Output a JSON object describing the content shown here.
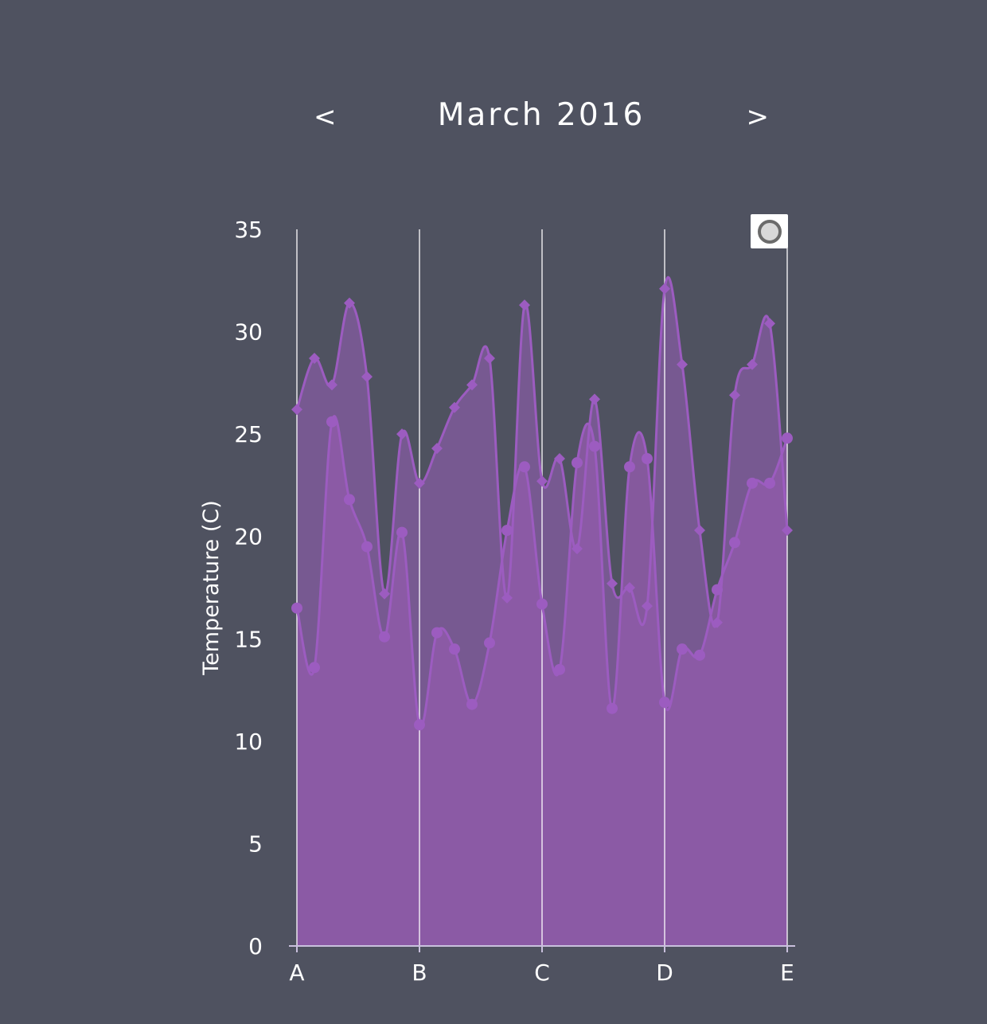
{
  "header": {
    "prev_label": "<",
    "title": "March 2016",
    "next_label": ">"
  },
  "colors": {
    "background": "#4f5260",
    "series_line": "#9c5cc0",
    "fill_high": "#7e5a9a",
    "fill_low": "#8e5aa8",
    "axis": "#ffffff"
  },
  "legend_toggle": {
    "icon": "ring-icon"
  },
  "chart_data": {
    "type": "area",
    "title": "",
    "xlabel": "",
    "ylabel": "Temperature (C)",
    "ylim": [
      0,
      35
    ],
    "yticks": [
      0,
      5,
      10,
      15,
      20,
      25,
      30,
      35
    ],
    "xlim": [
      0,
      28
    ],
    "xticks": [
      {
        "x": 0,
        "label": "A"
      },
      {
        "x": 7,
        "label": "B"
      },
      {
        "x": 14,
        "label": "C"
      },
      {
        "x": 21,
        "label": "D"
      },
      {
        "x": 28,
        "label": "E"
      }
    ],
    "vertical_grid": true,
    "x": [
      0,
      1,
      2,
      3,
      4,
      5,
      6,
      7,
      8,
      9,
      10,
      11,
      12,
      13,
      14,
      15,
      16,
      17,
      18,
      19,
      20,
      21,
      22,
      23,
      24,
      25,
      26,
      27,
      28
    ],
    "series": [
      {
        "marker": "diamond",
        "values": [
          26.2,
          28.7,
          27.4,
          31.4,
          27.8,
          17.2,
          25.0,
          22.6,
          24.3,
          26.3,
          27.4,
          28.7,
          17.0,
          31.3,
          22.7,
          23.8,
          19.4,
          26.7,
          17.7,
          17.5,
          16.6,
          32.1,
          28.4,
          20.3,
          15.8,
          26.9,
          28.4,
          30.4,
          20.3
        ]
      },
      {
        "marker": "circle",
        "values": [
          16.5,
          13.6,
          25.6,
          21.8,
          19.5,
          15.1,
          20.2,
          10.8,
          15.3,
          14.5,
          11.8,
          14.8,
          20.3,
          23.4,
          16.7,
          13.5,
          23.6,
          24.4,
          11.6,
          23.4,
          23.8,
          11.9,
          14.5,
          14.2,
          17.4,
          19.7,
          22.6,
          22.6,
          24.8
        ]
      }
    ]
  }
}
